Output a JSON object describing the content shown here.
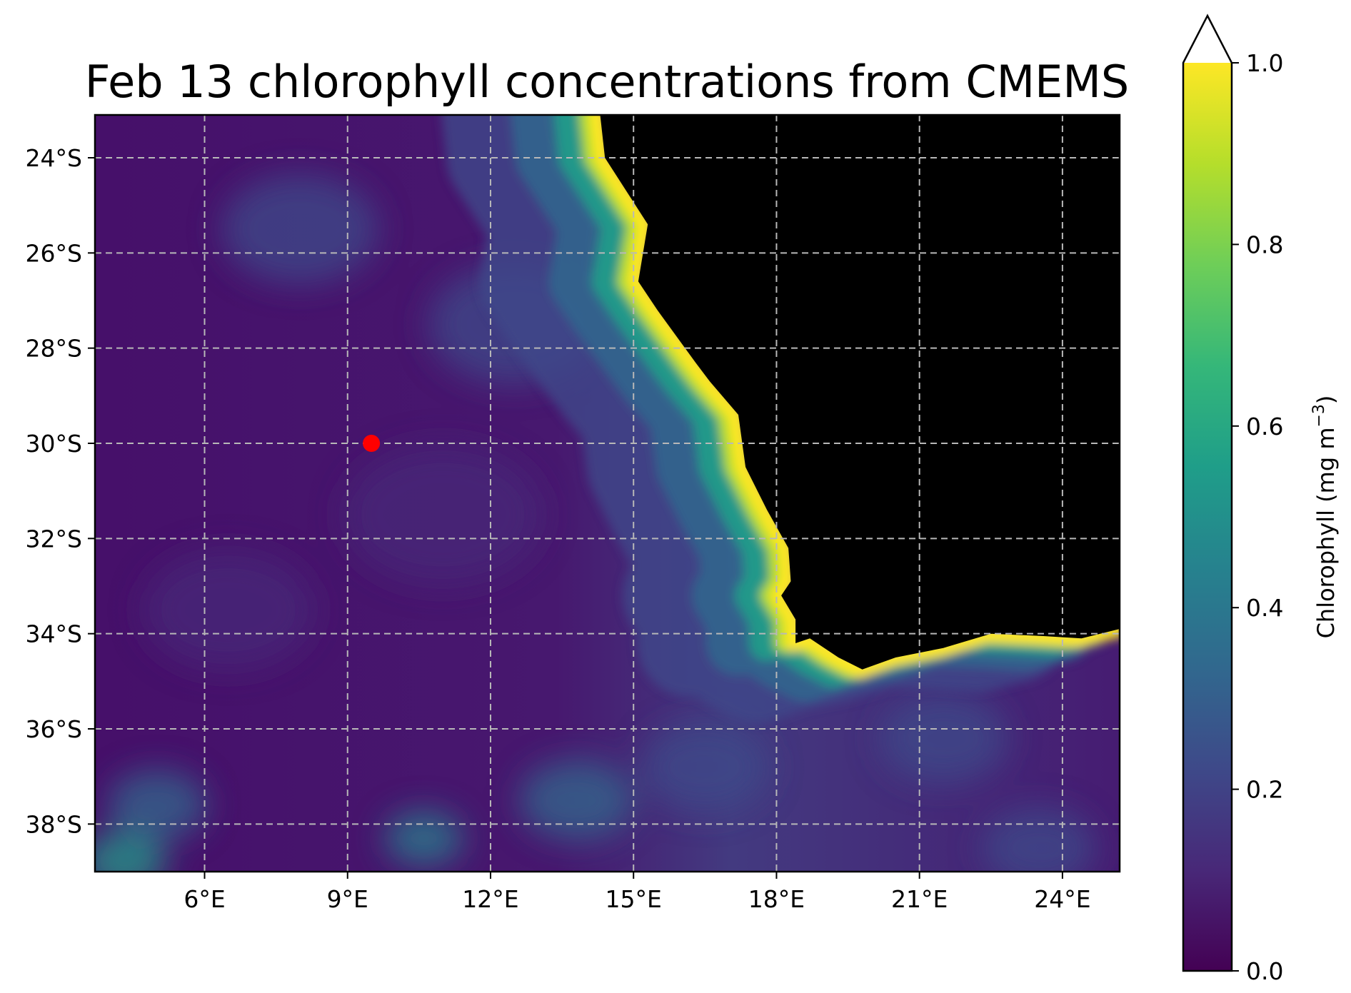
{
  "title": "Feb 13 chlorophyll concentrations from CMEMS",
  "colors": {
    "land": "#000000",
    "marker": "#ff0000",
    "gridline": "#b8b8b8",
    "viridis": [
      "#440154",
      "#482878",
      "#3e4989",
      "#31688e",
      "#26828e",
      "#1f9e89",
      "#35b779",
      "#6ece58",
      "#b5de2b",
      "#fde725"
    ]
  },
  "map": {
    "lon_range": [
      3.7,
      25.2
    ],
    "lat_range": [
      -39.0,
      -23.1
    ],
    "lon_ticks": [
      {
        "value": 6,
        "label": "6°E"
      },
      {
        "value": 9,
        "label": "9°E"
      },
      {
        "value": 12,
        "label": "12°E"
      },
      {
        "value": 15,
        "label": "15°E"
      },
      {
        "value": 18,
        "label": "18°E"
      },
      {
        "value": 21,
        "label": "21°E"
      },
      {
        "value": 24,
        "label": "24°E"
      }
    ],
    "lat_ticks": [
      {
        "value": -24,
        "label": "24°S"
      },
      {
        "value": -26,
        "label": "26°S"
      },
      {
        "value": -28,
        "label": "28°S"
      },
      {
        "value": -30,
        "label": "30°S"
      },
      {
        "value": -32,
        "label": "32°S"
      },
      {
        "value": -34,
        "label": "34°S"
      },
      {
        "value": -36,
        "label": "36°S"
      },
      {
        "value": -38,
        "label": "38°S"
      }
    ],
    "gridlines": true,
    "marker": {
      "lon": 9.5,
      "lat": -30.0
    },
    "coastline": [
      [
        14.3,
        -23.1
      ],
      [
        14.4,
        -24.0
      ],
      [
        15.3,
        -25.4
      ],
      [
        15.1,
        -26.6
      ],
      [
        15.5,
        -27.2
      ],
      [
        16.3,
        -28.3
      ],
      [
        16.6,
        -28.7
      ],
      [
        17.2,
        -29.4
      ],
      [
        17.35,
        -30.5
      ],
      [
        17.8,
        -31.4
      ],
      [
        18.25,
        -32.2
      ],
      [
        18.3,
        -32.9
      ],
      [
        18.1,
        -33.2
      ],
      [
        18.4,
        -33.7
      ],
      [
        18.4,
        -34.2
      ],
      [
        18.7,
        -34.1
      ],
      [
        19.3,
        -34.5
      ],
      [
        19.8,
        -34.75
      ],
      [
        20.5,
        -34.5
      ],
      [
        21.5,
        -34.3
      ],
      [
        22.5,
        -34.0
      ],
      [
        23.6,
        -34.05
      ],
      [
        24.4,
        -34.1
      ],
      [
        25.2,
        -33.9
      ]
    ]
  },
  "colorbar": {
    "label": "Chlorophyll (mg m",
    "label_exp": "−3",
    "label_close": ")",
    "vmin": 0.0,
    "vmax": 1.0,
    "extend": "max",
    "ticks": [
      {
        "value": 0.0,
        "label": "0.0"
      },
      {
        "value": 0.2,
        "label": "0.2"
      },
      {
        "value": 0.4,
        "label": "0.4"
      },
      {
        "value": 0.6,
        "label": "0.6"
      },
      {
        "value": 0.8,
        "label": "0.8"
      },
      {
        "value": 1.0,
        "label": "1.0"
      }
    ]
  }
}
